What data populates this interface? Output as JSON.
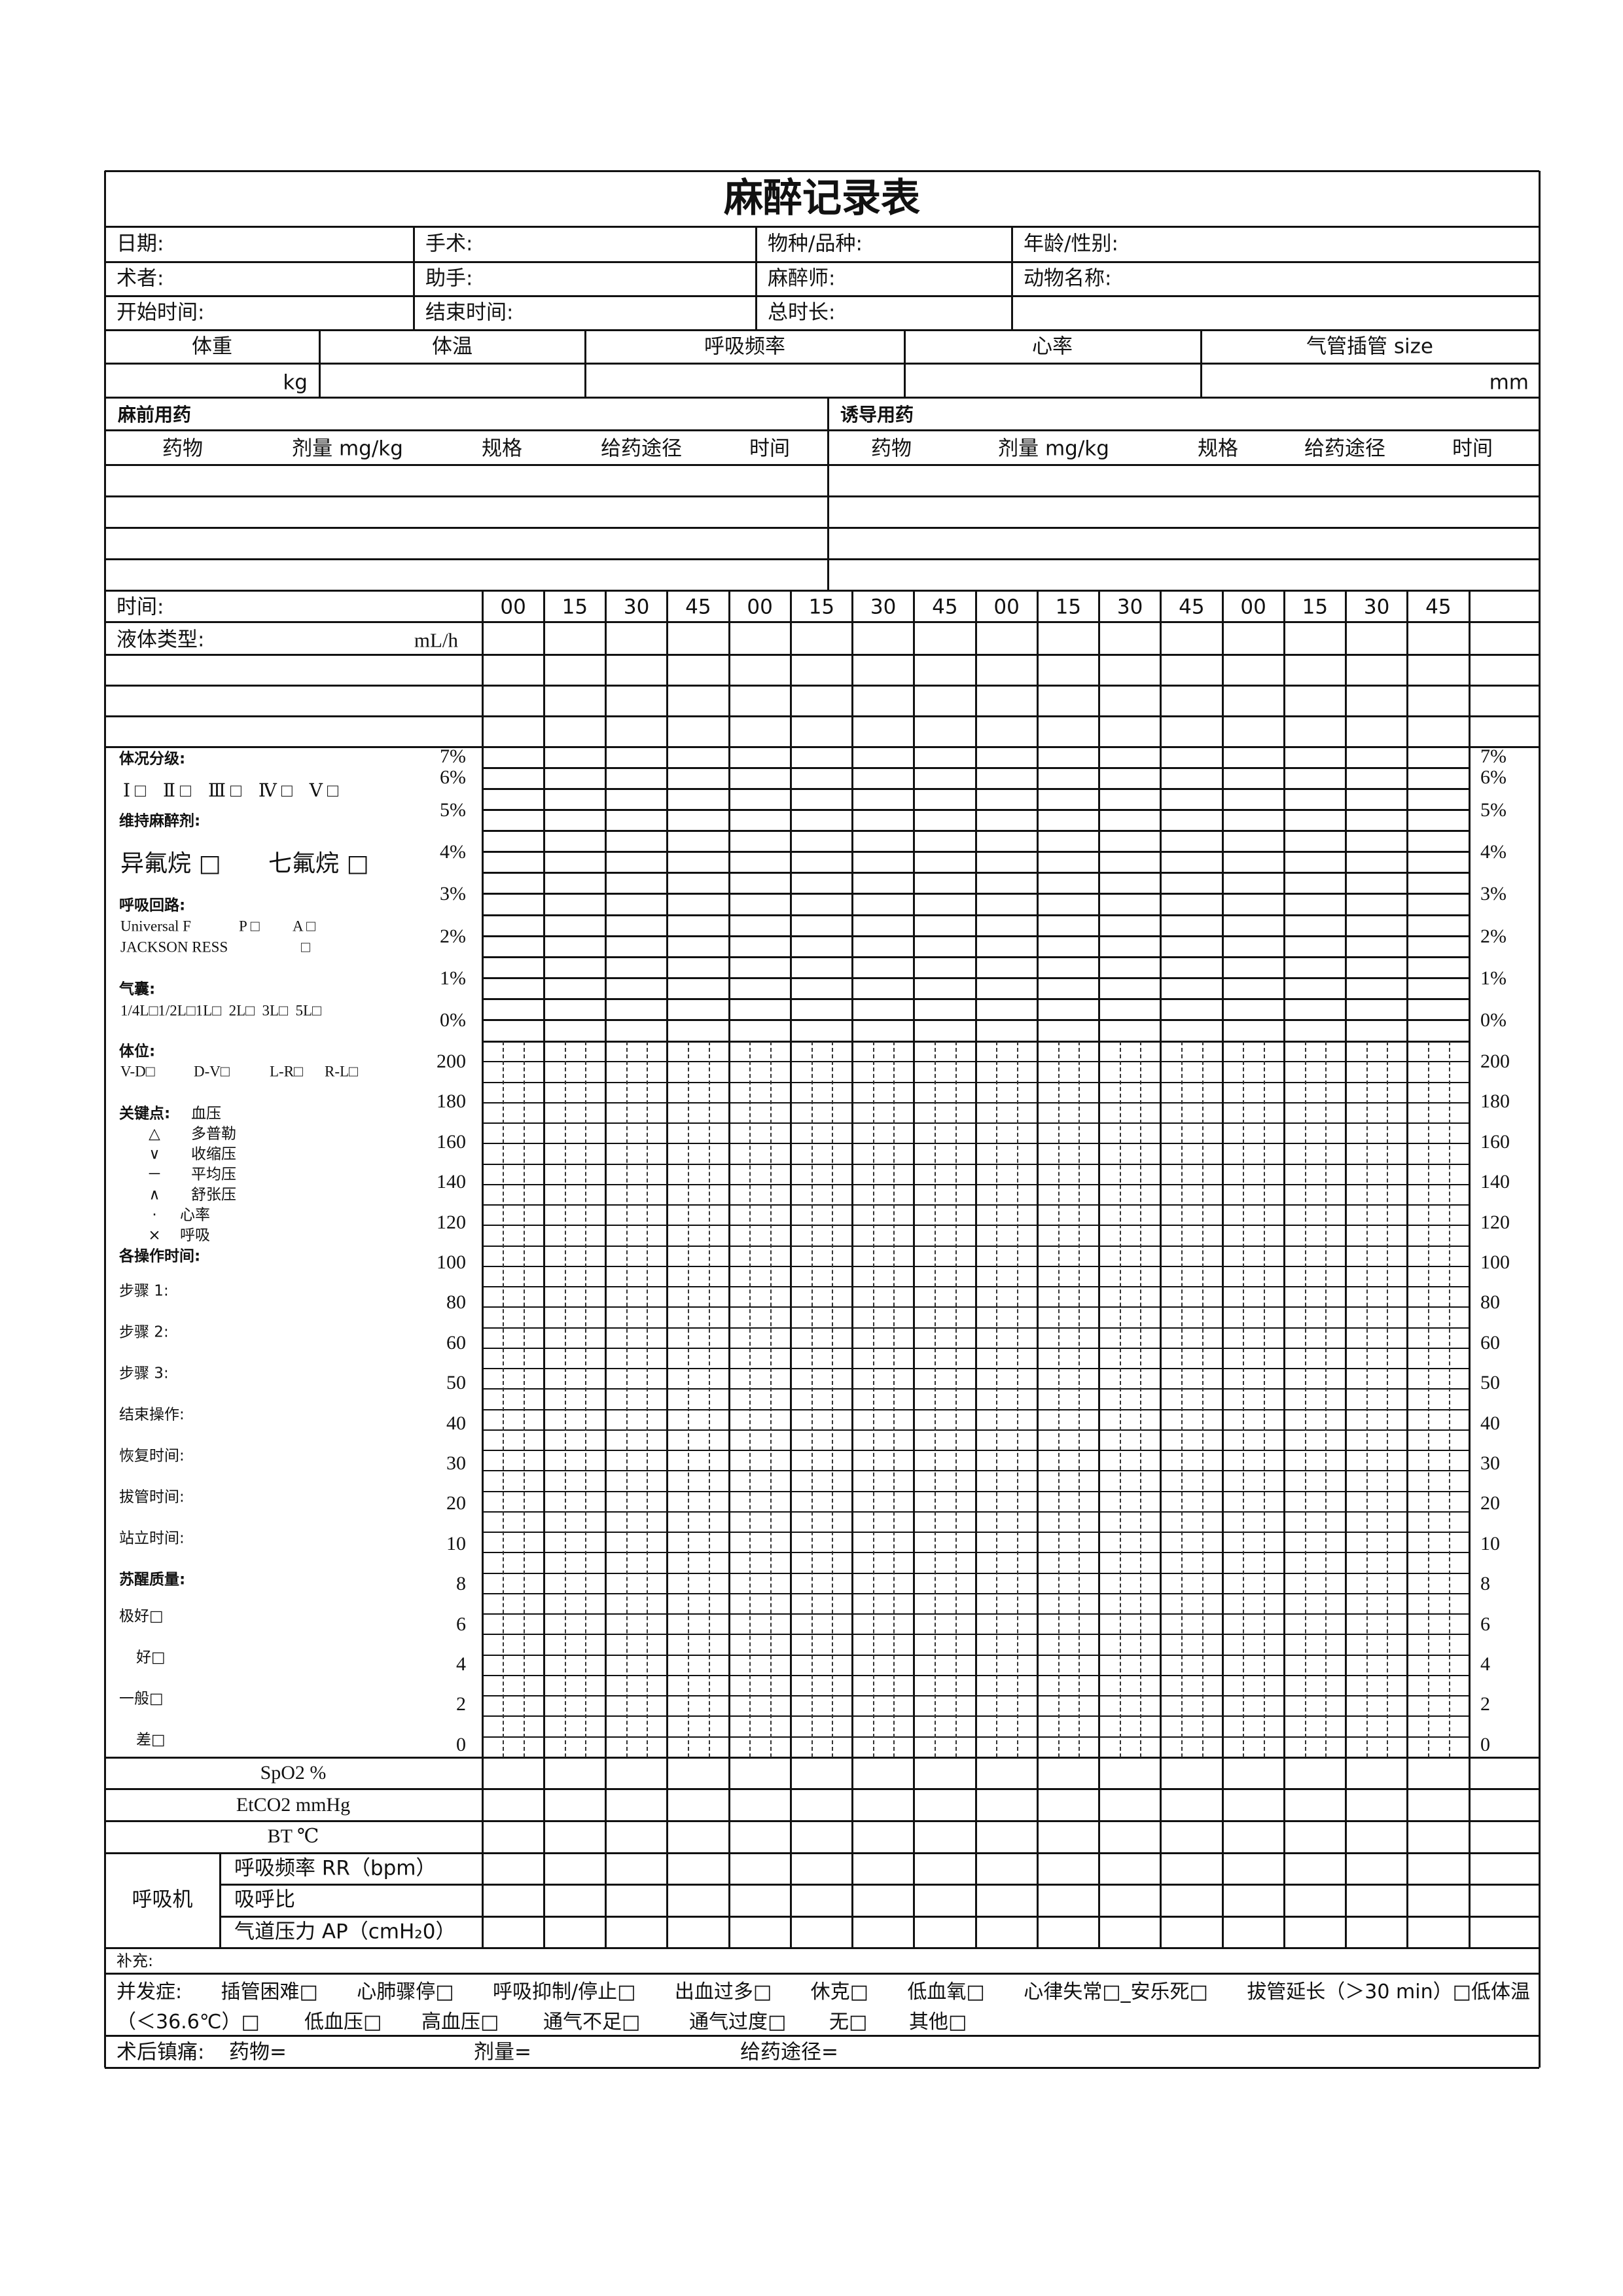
{
  "title": "麻醉记录表",
  "info": {
    "rows": [
      [
        "日期:",
        "手术:",
        "物种/品种:",
        "年龄/性别:"
      ],
      [
        "术者:",
        "助手:",
        "麻醉师:",
        "动物名称:"
      ],
      [
        "开始时间:",
        "结束时间:",
        "总时长:",
        ""
      ]
    ]
  },
  "vitals": {
    "headers": [
      "体重",
      "体温",
      "呼吸频率",
      "心率",
      "气管插管 size"
    ],
    "weight_unit": "kg",
    "tube_unit": "mm"
  },
  "premed": {
    "title": "麻前用药",
    "columns": [
      "药物",
      "剂量 mg/kg",
      "规格",
      "给药途径",
      "时间"
    ]
  },
  "induction": {
    "title": "诱导用药",
    "columns": [
      "药物",
      "剂量 mg/kg",
      "规格",
      "给药途径",
      "时间"
    ]
  },
  "timeline": {
    "label": "时间:",
    "ticks": [
      "00",
      "15",
      "30",
      "45",
      "00",
      "15",
      "30",
      "45",
      "00",
      "15",
      "30",
      "45",
      "00",
      "15",
      "30",
      "45"
    ],
    "fluid_label": "液体类型:",
    "fluid_unit": "mL/h"
  },
  "left_panel": {
    "asa_title": "体况分级:",
    "asa_options": [
      "Ⅰ □",
      "Ⅱ □",
      "Ⅲ □",
      "Ⅳ □",
      "Ⅴ □"
    ],
    "maintenance_title": "维持麻醉剂:",
    "maintenance_options": [
      "异氟烷 □",
      "七氟烷 □"
    ],
    "circuit_title": "呼吸回路:",
    "circuit_universal": "Universal F",
    "circuit_p": "P □",
    "circuit_a": "A □",
    "circuit_jackson": "JACKSON RESS",
    "circuit_jackson_box": "□",
    "bag_title": "气囊:",
    "bag_options": "1/4L□1/2L□1L□  2L□  3L□  5L□",
    "position_title": "体位:",
    "position_options": [
      "V-D□",
      "D-V□",
      "L-R□",
      "R-L□"
    ],
    "key_title": "关键点:",
    "key_bp": "血压",
    "legend": [
      {
        "symbol": "△",
        "label": "多普勒"
      },
      {
        "symbol": "∨",
        "label": "收缩压"
      },
      {
        "symbol": "－",
        "label": "平均压"
      },
      {
        "symbol": "∧",
        "label": "舒张压"
      },
      {
        "symbol": "·",
        "label": "心率"
      },
      {
        "symbol": "×",
        "label": "呼吸"
      }
    ],
    "ops_title": "各操作时间:",
    "ops": [
      "步骤 1:",
      "步骤 2:",
      "步骤 3:",
      "结束操作:",
      "恢复时间:",
      "拔管时间:",
      "站立时间:"
    ],
    "recovery_title": "苏醒质量:",
    "recovery": [
      "极好□",
      "好□",
      "一般□",
      "差□"
    ]
  },
  "chart_labels": {
    "percent": [
      "7%",
      "6%",
      "5%",
      "4%",
      "3%",
      "2%",
      "1%",
      "0%"
    ],
    "values": [
      "200",
      "180",
      "160",
      "140",
      "120",
      "100",
      "80",
      "60",
      "50",
      "40",
      "30",
      "20",
      "10",
      "8",
      "6",
      "4",
      "2",
      "0"
    ]
  },
  "monitor_rows": [
    "SpO2 %",
    "EtCO2 mmHg",
    "BT ℃"
  ],
  "ventilator": {
    "label": "呼吸机",
    "rows": [
      "呼吸频率 RR（bpm）",
      "吸呼比",
      "气道压力 AP（cmH₂0）"
    ]
  },
  "supplement": "补充:",
  "complications": {
    "line1": [
      "并发症:",
      "插管困难□",
      "心肺骤停□",
      "呼吸抑制/停止□",
      "出血过多□",
      "休克□",
      "低血氧□",
      "心律失常□_安乐死□",
      "拔管延长（＞30 min）□低体温"
    ],
    "line2": [
      "（＜36.6℃）□",
      "低血压□",
      "高血压□",
      "通气不足□",
      "通气过度□",
      "无□",
      "其他□"
    ]
  },
  "analgesia": {
    "label": "术后镇痛:",
    "drug": "药物=",
    "dose": "剂量=",
    "route": "给药途径="
  }
}
